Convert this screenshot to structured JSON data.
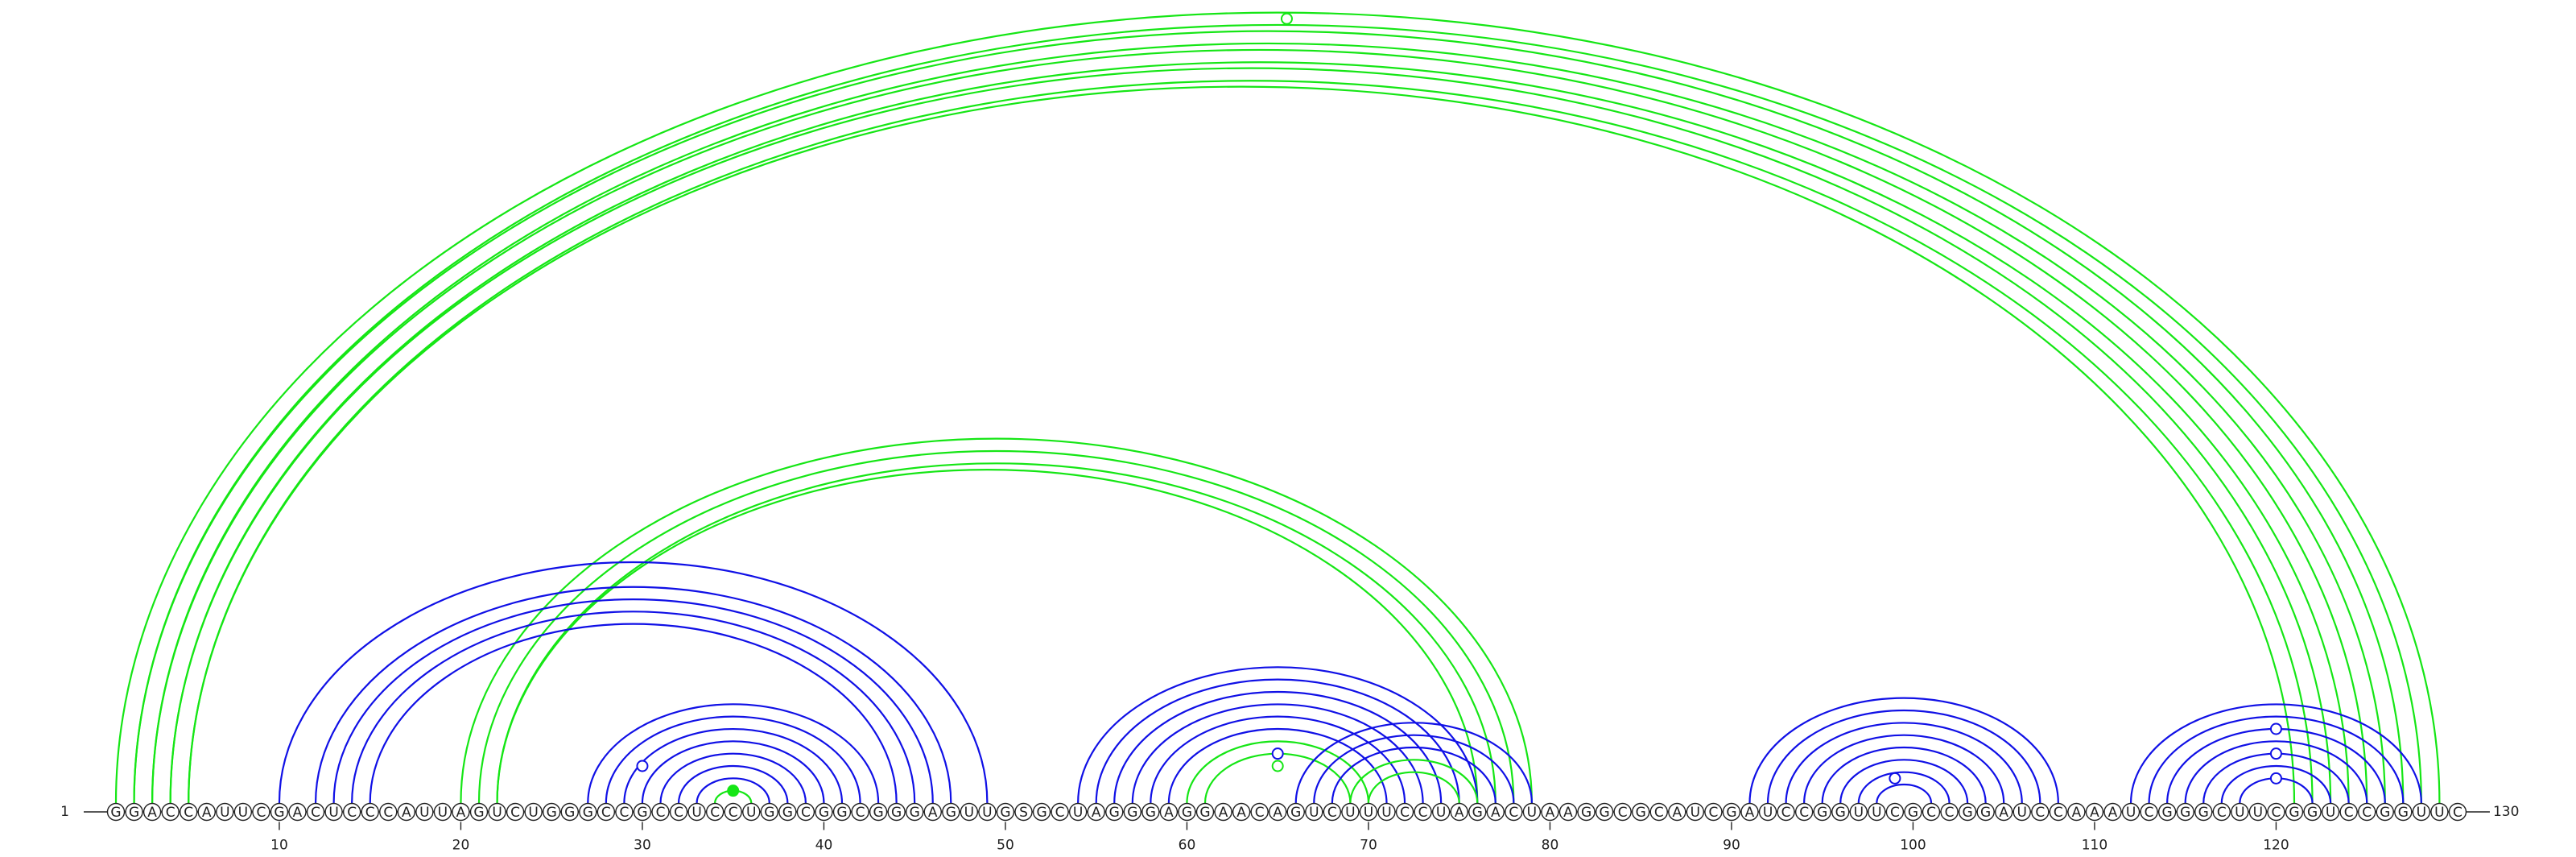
{
  "sequence": "GGACCAUUCGACUCCCAUUAGUCUGGGCCGCCUCCUGGCGGCGGGAGUUGSGCUAGGGAGGAACAGUCUUUCCUAGACUAAGGCGCAUCGAUCCGGUUCGCCGGAUCCAAAUCGGGCUUCGGUCCGGUUC",
  "start_label": "1",
  "end_label": "130",
  "ticks": [
    "10",
    "20",
    "30",
    "40",
    "50",
    "60",
    "70",
    "80",
    "90",
    "100",
    "110",
    "120"
  ],
  "colors": {
    "blue": "#1010e6",
    "green": "#15e615",
    "letter": "#222222"
  },
  "arcs": [
    {
      "i": 1,
      "j": 129,
      "color": "green"
    },
    {
      "i": 2,
      "j": 128,
      "color": "green"
    },
    {
      "i": 2,
      "j": 127,
      "color": "green"
    },
    {
      "i": 3,
      "j": 126,
      "color": "green"
    },
    {
      "i": 3,
      "j": 125,
      "color": "green"
    },
    {
      "i": 4,
      "j": 124,
      "color": "green"
    },
    {
      "i": 4,
      "j": 123,
      "color": "green"
    },
    {
      "i": 5,
      "j": 122,
      "color": "green"
    },
    {
      "i": 5,
      "j": 121,
      "color": "green"
    },
    {
      "i": 20,
      "j": 79,
      "color": "green"
    },
    {
      "i": 21,
      "j": 78,
      "color": "green"
    },
    {
      "i": 22,
      "j": 77,
      "color": "green"
    },
    {
      "i": 22,
      "j": 76,
      "color": "green"
    },
    {
      "i": 10,
      "j": 49,
      "color": "blue"
    },
    {
      "i": 12,
      "j": 47,
      "color": "blue"
    },
    {
      "i": 13,
      "j": 46,
      "color": "blue"
    },
    {
      "i": 14,
      "j": 45,
      "color": "blue"
    },
    {
      "i": 15,
      "j": 44,
      "color": "blue"
    },
    {
      "i": 27,
      "j": 43,
      "color": "blue"
    },
    {
      "i": 28,
      "j": 42,
      "color": "blue"
    },
    {
      "i": 29,
      "j": 41,
      "color": "blue"
    },
    {
      "i": 30,
      "j": 40,
      "color": "blue"
    },
    {
      "i": 31,
      "j": 39,
      "color": "blue"
    },
    {
      "i": 32,
      "j": 38,
      "color": "blue"
    },
    {
      "i": 33,
      "j": 37,
      "color": "blue"
    },
    {
      "i": 34,
      "j": 36,
      "color": "green"
    },
    {
      "i": 54,
      "j": 76,
      "color": "blue"
    },
    {
      "i": 55,
      "j": 75,
      "color": "blue"
    },
    {
      "i": 56,
      "j": 74,
      "color": "blue"
    },
    {
      "i": 57,
      "j": 73,
      "color": "blue"
    },
    {
      "i": 58,
      "j": 72,
      "color": "blue"
    },
    {
      "i": 59,
      "j": 71,
      "color": "blue"
    },
    {
      "i": 60,
      "j": 70,
      "color": "green"
    },
    {
      "i": 61,
      "j": 69,
      "color": "green"
    },
    {
      "i": 66,
      "j": 79,
      "color": "blue"
    },
    {
      "i": 67,
      "j": 78,
      "color": "blue"
    },
    {
      "i": 68,
      "j": 77,
      "color": "blue"
    },
    {
      "i": 69,
      "j": 76,
      "color": "green"
    },
    {
      "i": 70,
      "j": 75,
      "color": "green"
    },
    {
      "i": 91,
      "j": 108,
      "color": "blue"
    },
    {
      "i": 92,
      "j": 107,
      "color": "blue"
    },
    {
      "i": 93,
      "j": 106,
      "color": "blue"
    },
    {
      "i": 94,
      "j": 105,
      "color": "blue"
    },
    {
      "i": 95,
      "j": 104,
      "color": "blue"
    },
    {
      "i": 96,
      "j": 103,
      "color": "blue"
    },
    {
      "i": 97,
      "j": 102,
      "color": "blue"
    },
    {
      "i": 98,
      "j": 101,
      "color": "blue"
    },
    {
      "i": 112,
      "j": 128,
      "color": "blue"
    },
    {
      "i": 113,
      "j": 127,
      "color": "blue"
    },
    {
      "i": 114,
      "j": 126,
      "color": "blue"
    },
    {
      "i": 115,
      "j": 125,
      "color": "blue"
    },
    {
      "i": 116,
      "j": 124,
      "color": "blue"
    },
    {
      "i": 117,
      "j": 123,
      "color": "blue"
    },
    {
      "i": 118,
      "j": 122,
      "color": "blue"
    }
  ],
  "markers": [
    {
      "i": 2,
      "j": 129,
      "color": "green",
      "filled": false
    },
    {
      "i": 27,
      "j": 33,
      "color": "blue",
      "filled": false
    },
    {
      "i": 34,
      "j": 36,
      "color": "green",
      "filled": true
    },
    {
      "i": 61,
      "j": 69,
      "color": "blue",
      "filled": false
    },
    {
      "i": 62,
      "j": 68,
      "color": "green",
      "filled": false
    },
    {
      "i": 97,
      "j": 101,
      "color": "blue",
      "filled": false
    },
    {
      "i": 114,
      "j": 126,
      "color": "blue",
      "filled": false
    },
    {
      "i": 116,
      "j": 124,
      "color": "blue",
      "filled": false
    },
    {
      "i": 118,
      "j": 122,
      "color": "blue",
      "filled": false
    }
  ]
}
